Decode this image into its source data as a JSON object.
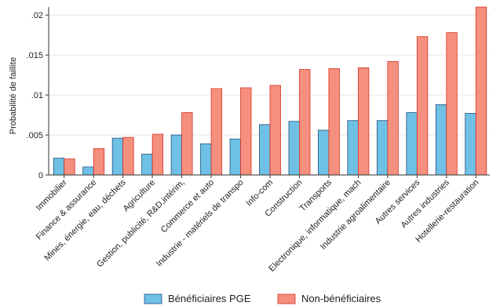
{
  "chart_data": {
    "type": "bar",
    "ylabel": "Probabilité de faillite",
    "ylim": [
      0,
      0.021
    ],
    "yticks": [
      0,
      0.005,
      0.01,
      0.015,
      0.02
    ],
    "ytick_labels": [
      "0",
      ".005",
      ".01",
      ".015",
      ".02"
    ],
    "grid": true,
    "legend_position": "bottom",
    "categories": [
      "Immobilier",
      "Finance & assurance",
      "Mines, énergie, eau, déchets",
      "Agriculture",
      "Gestion, publicité, R&D,intérim,",
      "Commerce et auto",
      "Industrie - matériels de transpo",
      "Info-com",
      "Construction",
      "Transports",
      "Electronique, informatique, mach",
      "Industrie agroalimentaire",
      "Autres services",
      "Autres industries",
      "Hotellerie-restauration"
    ],
    "series": [
      {
        "name": "Bénéficiaires PGE",
        "color": "#6EC1E4",
        "stroke": "#1F4E79",
        "values": [
          0.0021,
          0.001,
          0.0046,
          0.0026,
          0.005,
          0.0039,
          0.0045,
          0.0063,
          0.0067,
          0.0056,
          0.0068,
          0.0068,
          0.0078,
          0.0088,
          0.0077
        ]
      },
      {
        "name": "Non-bénéficiaires",
        "color": "#F4907D",
        "stroke": "#D93025",
        "values": [
          0.002,
          0.0033,
          0.0047,
          0.0051,
          0.0078,
          0.0108,
          0.0109,
          0.0112,
          0.0132,
          0.0133,
          0.0134,
          0.0142,
          0.0173,
          0.0178,
          0.021
        ]
      }
    ]
  }
}
